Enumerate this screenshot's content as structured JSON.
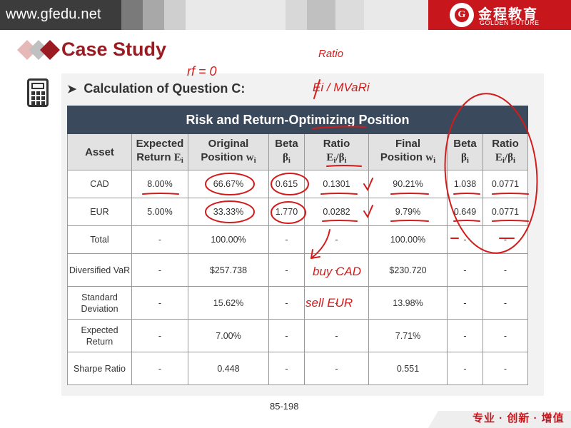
{
  "header": {
    "url": "www.gfedu.net",
    "logo_mark": "G",
    "logo_cn": "金程教育",
    "logo_en": "GOLDEN FUTURE",
    "brand_color": "#c8161d"
  },
  "slide": {
    "title": "Case Study",
    "subtitle": "Calculation of Question C:",
    "page_number": "85-198",
    "footer_slogan": "专业 · 创新 · 增值"
  },
  "table": {
    "caption": "Risk and Return-Optimizing Position",
    "headers": [
      {
        "line1": "Asset",
        "line2": "",
        "sym": ""
      },
      {
        "line1": "Expected",
        "line2": "Return",
        "sym": "E",
        "symsub": "i"
      },
      {
        "line1": "Original",
        "line2": "Position",
        "sym": "w",
        "symsub": "i"
      },
      {
        "line1": "Beta",
        "line2": "",
        "sym": "β",
        "symsub": "i"
      },
      {
        "line1": "Ratio",
        "line2": "",
        "sym": "E",
        "symsub": "i",
        "sym2": "/β",
        "sym2sub": "i"
      },
      {
        "line1": "Final",
        "line2": "Position",
        "sym": "w",
        "symsub": "i"
      },
      {
        "line1": "Beta",
        "line2": "",
        "sym": "β",
        "symsub": "i"
      },
      {
        "line1": "Ratio",
        "line2": "",
        "sym": "E",
        "symsub": "i",
        "sym2": "/β",
        "sym2sub": "i"
      }
    ],
    "rows": [
      [
        "CAD",
        "8.00%",
        "66.67%",
        "0.615",
        "0.1301",
        "90.21%",
        "1.038",
        "0.0771"
      ],
      [
        "EUR",
        "5.00%",
        "33.33%",
        "1.770",
        "0.0282",
        "9.79%",
        "0.649",
        "0.0771"
      ],
      [
        "Total",
        "-",
        "100.00%",
        "-",
        "-",
        "100.00%",
        "-",
        "-"
      ],
      [
        "Diversified VaR",
        "-",
        "$257.738",
        "-",
        "-",
        "$230.720",
        "-",
        "-"
      ],
      [
        "Standard Deviation",
        "-",
        "15.62%",
        "-",
        "-",
        "13.98%",
        "-",
        "-"
      ],
      [
        "Expected Return",
        "-",
        "7.00%",
        "-",
        "-",
        "7.71%",
        "-",
        "-"
      ],
      [
        "Sharpe Ratio",
        "-",
        "0.448",
        "-",
        "-",
        "0.551",
        "-",
        "-"
      ]
    ]
  },
  "annotations": {
    "rf": "rf = 0",
    "ratio": "Ratio",
    "formula": "Ei / MVaRi",
    "buy": "buy CAD",
    "sell": "sell EUR",
    "ink_color": "#d41b1b"
  }
}
